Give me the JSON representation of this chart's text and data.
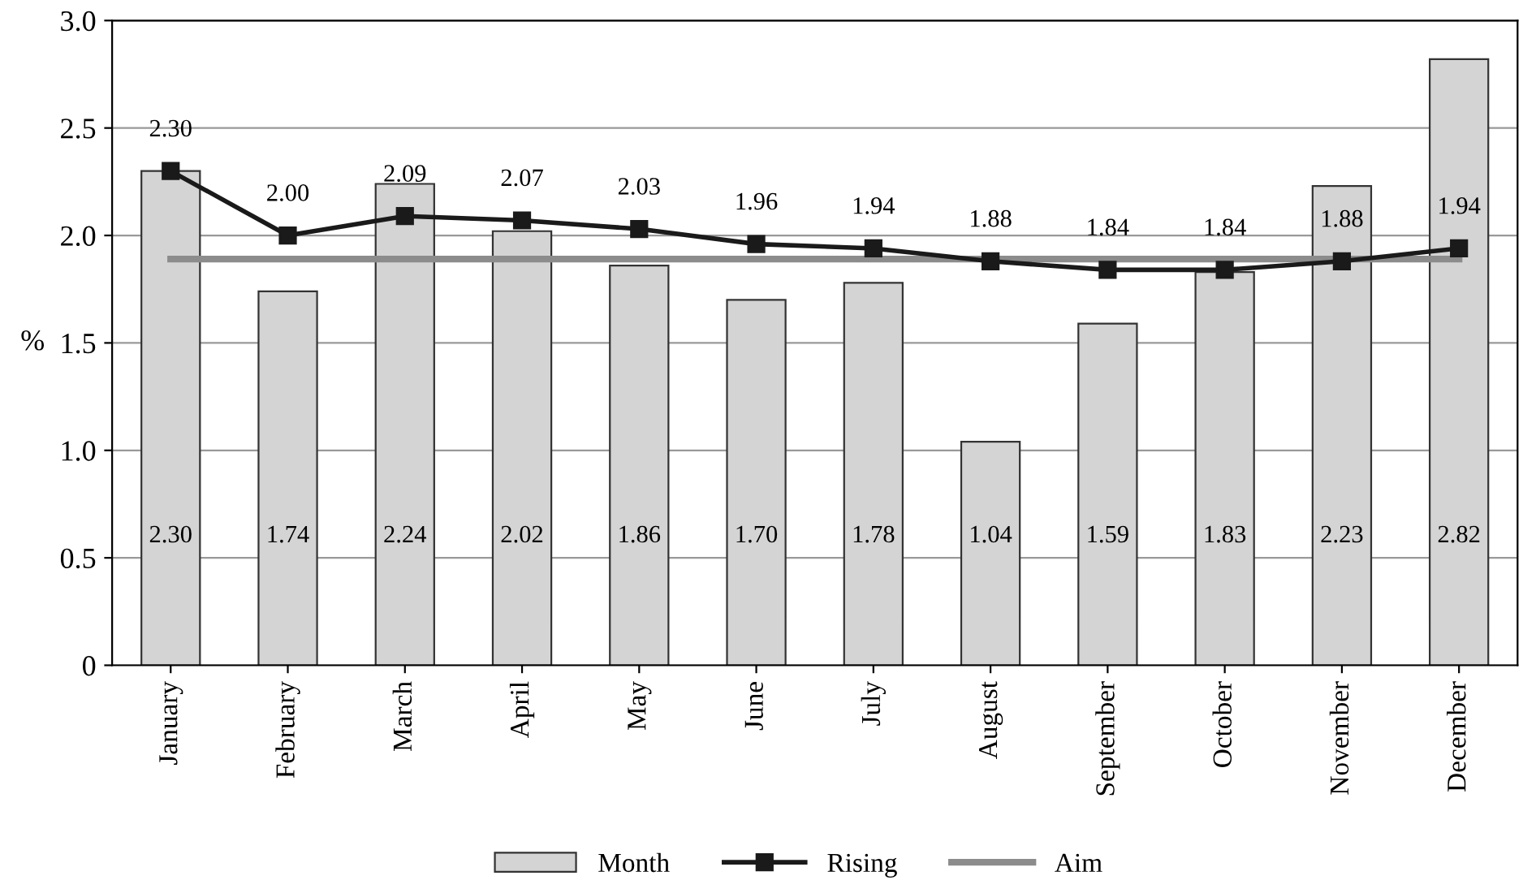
{
  "chart_data": {
    "type": "bar",
    "ylabel": "%",
    "categories": [
      "January",
      "February",
      "March",
      "April",
      "May",
      "June",
      "July",
      "August",
      "September",
      "October",
      "November",
      "December"
    ],
    "series": [
      {
        "name": "Month",
        "color": "#d4d4d4",
        "values": [
          2.3,
          1.74,
          2.24,
          2.02,
          1.86,
          1.7,
          1.78,
          1.04,
          1.59,
          1.83,
          2.23,
          2.82
        ],
        "value_labels": [
          "2.30",
          "1.74",
          "2.24",
          "2.02",
          "1.86",
          "1.70",
          "1.78",
          "1.04",
          "1.59",
          "1.83",
          "2.23",
          "2.82"
        ]
      },
      {
        "name": "Rising",
        "type": "line",
        "color": "#1a1a1a",
        "marker": "square",
        "values": [
          2.3,
          2.0,
          2.09,
          2.07,
          2.03,
          1.96,
          1.94,
          1.88,
          1.84,
          1.84,
          1.88,
          1.94
        ],
        "value_labels": [
          "2.30",
          "2.00",
          "2.09",
          "2.07",
          "2.03",
          "1.96",
          "1.94",
          "1.88",
          "1.84",
          "1.84",
          "1.88",
          "1.94"
        ]
      },
      {
        "name": "Aim",
        "type": "line",
        "color": "#8c8c8c",
        "values": [
          1.89,
          1.89,
          1.89,
          1.89,
          1.89,
          1.89,
          1.89,
          1.89,
          1.89,
          1.89,
          1.89,
          1.89
        ]
      }
    ],
    "ylim": [
      0,
      3.0
    ],
    "yticks": [
      0,
      {
        "value": 0.5,
        "label": "0.5"
      },
      {
        "value": 1.0,
        "label": "1.0"
      },
      {
        "value": 1.5,
        "label": "1.5"
      },
      {
        "value": 2.0,
        "label": "2.0"
      },
      {
        "value": 2.5,
        "label": "2.5"
      },
      {
        "value": 3.0,
        "label": "3.0"
      }
    ],
    "grid": "y",
    "legend": "bottom"
  }
}
